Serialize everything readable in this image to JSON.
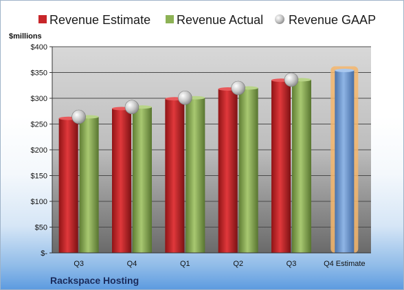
{
  "chart_data": {
    "type": "bar",
    "unit_label": "$millions",
    "company": "Rackspace Hosting",
    "categories": [
      "Q3",
      "Q4",
      "Q1",
      "Q2",
      "Q3",
      "Q4 Estimate"
    ],
    "y_ticks": [
      "$-",
      "$50",
      "$100",
      "$150",
      "$200",
      "$250",
      "$300",
      "$350",
      "$400"
    ],
    "ylim": [
      0,
      400
    ],
    "grid": true,
    "legend_position": "top",
    "series": [
      {
        "name": "Revenue Estimate",
        "type": "bar",
        "color": "#c8262a",
        "values": [
          261,
          280,
          299,
          318,
          335,
          null
        ]
      },
      {
        "name": "Revenue Actual",
        "type": "bar",
        "color": "#8db255",
        "values": [
          264,
          283,
          301,
          320,
          336,
          null
        ]
      },
      {
        "name": "Revenue GAAP",
        "type": "marker",
        "color": "#b0b0b0",
        "values": [
          264,
          283,
          301,
          320,
          336,
          null
        ]
      }
    ],
    "estimate": {
      "category": "Q4 Estimate",
      "value": 354,
      "color": "#6f9bd6",
      "highlight": "#f5b66c"
    }
  }
}
